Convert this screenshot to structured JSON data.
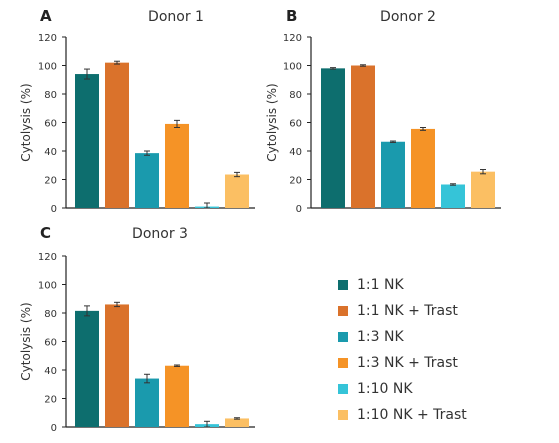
{
  "chart_data": [
    {
      "type": "bar",
      "panel_letter": "A",
      "title": "Donor 1",
      "ylabel": "Cytolysis (%)",
      "xlabel": "",
      "ylim": [
        0,
        120
      ],
      "yticks": [
        0,
        20,
        40,
        60,
        80,
        100,
        120
      ],
      "grid": false,
      "legend": "shared, bottom-right",
      "categories": [
        "1:1 NK",
        "1:1 NK + Trast",
        "1:3 NK",
        "1:3 NK + Trast",
        "1:10 NK",
        "1:10 NK + Trast"
      ],
      "values": [
        94,
        102,
        38.5,
        59,
        1,
        23.5
      ],
      "errors": [
        3.5,
        1,
        1.5,
        2.5,
        2.5,
        1.5
      ]
    },
    {
      "type": "bar",
      "panel_letter": "B",
      "title": "Donor 2",
      "ylabel": "Cytolysis (%)",
      "xlabel": "",
      "ylim": [
        0,
        120
      ],
      "yticks": [
        0,
        20,
        40,
        60,
        80,
        100,
        120
      ],
      "grid": false,
      "legend": "shared, bottom-right",
      "categories": [
        "1:1 NK",
        "1:1 NK + Trast",
        "1:3 NK",
        "1:3 NK + Trast",
        "1:10 NK",
        "1:10 NK + Trast"
      ],
      "values": [
        98,
        100,
        46.5,
        55.5,
        16.5,
        25.5
      ],
      "errors": [
        0.5,
        0.5,
        0.5,
        1,
        0.5,
        1.5
      ]
    },
    {
      "type": "bar",
      "panel_letter": "C",
      "title": "Donor 3",
      "ylabel": "Cytolysis (%)",
      "xlabel": "",
      "ylim": [
        0,
        120
      ],
      "yticks": [
        0,
        20,
        40,
        60,
        80,
        100,
        120
      ],
      "grid": false,
      "legend": "shared, bottom-right",
      "categories": [
        "1:1 NK",
        "1:1 NK + Trast",
        "1:3 NK",
        "1:3 NK + Trast",
        "1:10 NK",
        "1:10 NK + Trast"
      ],
      "values": [
        81.5,
        86,
        34,
        43,
        2,
        6
      ],
      "errors": [
        3.5,
        1.5,
        3,
        0.5,
        2,
        0.5
      ]
    }
  ],
  "legend": {
    "items": [
      {
        "label": "1:1 NK",
        "color": "#0d6e6e"
      },
      {
        "label": "1:1 NK + Trast",
        "color": "#da722b"
      },
      {
        "label": "1:3 NK",
        "color": "#1a9aad"
      },
      {
        "label": "1:3 NK + Trast",
        "color": "#f59326"
      },
      {
        "label": "1:10 NK",
        "color": "#35c4d8"
      },
      {
        "label": "1:10 NK + Trast",
        "color": "#fbbf63"
      }
    ]
  }
}
